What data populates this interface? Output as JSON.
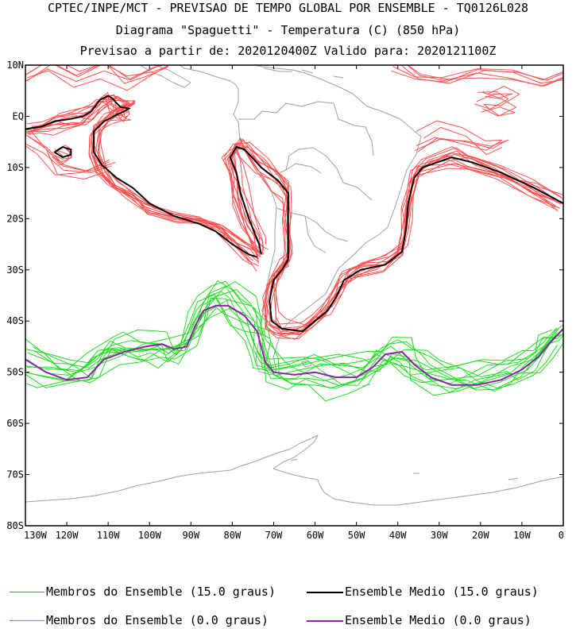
{
  "title": {
    "line1": "CPTEC/INPE/MCT - PREVISAO DE TEMPO GLOBAL POR ENSEMBLE - TQ0126L028",
    "line2": "Diagrama \"Spaguetti\" - Temperatura (C) (850 hPa)",
    "line3": "Previsao a partir de: 2020120400Z  Valido para: 2020121100Z"
  },
  "map": {
    "lat_labels": [
      "10N",
      "EQ",
      "10S",
      "20S",
      "30S",
      "40S",
      "50S",
      "60S",
      "70S",
      "80S"
    ],
    "lon_labels": [
      "130W",
      "120W",
      "110W",
      "100W",
      "90W",
      "80W",
      "70W",
      "60W",
      "50W",
      "40W",
      "30W",
      "20W",
      "10W",
      "0"
    ],
    "lat_range": [
      10,
      -80
    ],
    "lon_range": [
      -130,
      0
    ],
    "colors": {
      "member_15": "#ff5050",
      "mean_15": "#000000",
      "member_0": "#20dd20",
      "mean_0": "#9020b0",
      "coast": "#a0a0a0"
    },
    "contours": {
      "mean_15_pacific_north": [
        [
          -130,
          -2.5
        ],
        [
          -126,
          -2
        ],
        [
          -123,
          -1
        ],
        [
          -119,
          -0.5
        ],
        [
          -116,
          0
        ],
        [
          -114,
          1
        ],
        [
          -112,
          3.2
        ],
        [
          -110,
          4
        ],
        [
          -109,
          3.5
        ],
        [
          -108,
          2.6
        ],
        [
          -107,
          1.8
        ],
        [
          -106,
          1.7
        ],
        [
          -105,
          1.5
        ],
        [
          -106,
          1
        ],
        [
          -108,
          0.3
        ],
        [
          -111,
          -1
        ],
        [
          -113.5,
          -3
        ],
        [
          -113.5,
          -7
        ],
        [
          -111.5,
          -9.5
        ],
        [
          -108,
          -12
        ],
        [
          -104,
          -14
        ],
        [
          -100,
          -17
        ],
        [
          -94,
          -19.5
        ],
        [
          -88,
          -21
        ],
        [
          -84,
          -22.5
        ],
        [
          -80,
          -25
        ],
        [
          -76,
          -27
        ],
        [
          -74,
          -27.5
        ]
      ],
      "mean_15_pacific_south": [
        [
          -73,
          -27
        ],
        [
          -73.5,
          -25
        ],
        [
          -76,
          -20
        ],
        [
          -78,
          -15
        ],
        [
          -79,
          -11
        ],
        [
          -80.5,
          -8
        ],
        [
          -79,
          -6
        ],
        [
          -77,
          -6.5
        ],
        [
          -73,
          -10
        ],
        [
          -69,
          -12.5
        ],
        [
          -66.5,
          -15
        ],
        [
          -66.5,
          -20
        ],
        [
          -66.5,
          -25
        ],
        [
          -66.5,
          -28
        ],
        [
          -68,
          -30
        ],
        [
          -70,
          -32
        ],
        [
          -71,
          -36
        ],
        [
          -70.5,
          -40
        ],
        [
          -68,
          -41.5
        ],
        [
          -63,
          -42
        ],
        [
          -60,
          -40
        ],
        [
          -57,
          -38
        ],
        [
          -55,
          -35.5
        ],
        [
          -53,
          -32
        ],
        [
          -49,
          -30
        ],
        [
          -43,
          -29
        ],
        [
          -39,
          -26.5
        ],
        [
          -38,
          -22
        ],
        [
          -37.5,
          -17
        ],
        [
          -36,
          -12
        ],
        [
          -34,
          -10
        ],
        [
          -27,
          -8
        ],
        [
          -22,
          -9
        ],
        [
          -15,
          -11
        ],
        [
          -7,
          -14
        ],
        [
          0,
          -17
        ]
      ],
      "mean_15_blob": [
        [
          -123,
          -7
        ],
        [
          -121,
          -6
        ],
        [
          -119,
          -6.5
        ],
        [
          -119,
          -7.5
        ],
        [
          -121,
          -8
        ],
        [
          -123,
          -7
        ]
      ],
      "mean_0": [
        [
          -130,
          -47.5
        ],
        [
          -125,
          -50
        ],
        [
          -120,
          -51.5
        ],
        [
          -115,
          -51
        ],
        [
          -111,
          -47.5
        ],
        [
          -106,
          -46
        ],
        [
          -101,
          -45
        ],
        [
          -97,
          -44.5
        ],
        [
          -94,
          -45.5
        ],
        [
          -91,
          -45
        ],
        [
          -89,
          -41
        ],
        [
          -87,
          -38
        ],
        [
          -84,
          -37
        ],
        [
          -81,
          -37
        ],
        [
          -77,
          -39
        ],
        [
          -74,
          -42
        ],
        [
          -73,
          -45
        ],
        [
          -72,
          -48
        ],
        [
          -70,
          -50
        ],
        [
          -65,
          -50.5
        ],
        [
          -60,
          -50
        ],
        [
          -55,
          -51
        ],
        [
          -50,
          -51
        ],
        [
          -46,
          -49
        ],
        [
          -43,
          -46.5
        ],
        [
          -39,
          -46
        ],
        [
          -36,
          -48.5
        ],
        [
          -32,
          -51
        ],
        [
          -27,
          -52.5
        ],
        [
          -21,
          -52.5
        ],
        [
          -15,
          -51.5
        ],
        [
          -10,
          -49.5
        ],
        [
          -6,
          -47
        ],
        [
          -3,
          -44
        ],
        [
          0,
          -41.5
        ]
      ]
    }
  },
  "legend": {
    "row1_left": "Membros do Ensemble (15.0 graus)",
    "row1_right": "Ensemble Medio (15.0 graus)",
    "row2_left": "Membros do Ensemble (0.0 graus)",
    "row2_right": "Ensemble Medio (0.0 graus)"
  }
}
